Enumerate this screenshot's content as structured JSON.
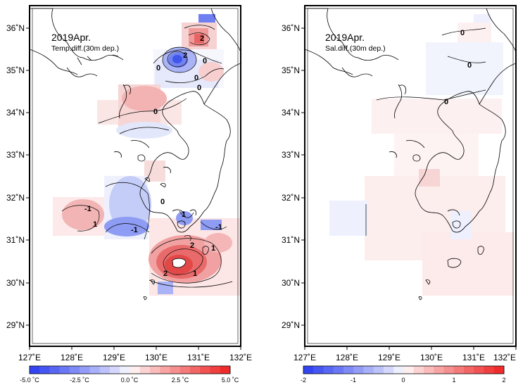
{
  "panels": [
    {
      "title": "2019Apr.",
      "subtitle": "Temp.diff.(30m dep.)",
      "x_ticks": [
        "127˚E",
        "128˚E",
        "129˚E",
        "130˚E",
        "131˚E",
        "132˚E"
      ],
      "y_ticks": [
        "36˚N",
        "35˚N",
        "34˚N",
        "33˚N",
        "32˚N",
        "31˚N",
        "30˚N",
        "29˚N"
      ],
      "colorbar": {
        "labels": [
          "-5.0 ˚C",
          "-2.5 ˚C",
          "0.0 ˚C",
          "2.5 ˚C",
          "5.0 ˚C"
        ],
        "range": [
          -5,
          5
        ]
      },
      "contour_labels": [
        "2",
        "2",
        "0",
        "0",
        "0",
        "0",
        "0",
        "0",
        "-1",
        "1",
        "1",
        "-1",
        "-1",
        "1",
        "2",
        "2",
        "1"
      ],
      "colors": {
        "negative": "#2a3df0",
        "positive": "#ee2222"
      }
    },
    {
      "title": "2019Apr.",
      "subtitle": "Sal.diff.(30m dep.)",
      "x_ticks": [
        "127˚E",
        "128˚E",
        "129˚E",
        "130˚E",
        "131˚E",
        "132˚E"
      ],
      "y_ticks": [
        "36˚N",
        "35˚N",
        "34˚N",
        "33˚N",
        "32˚N",
        "31˚N",
        "30˚N",
        "29˚N"
      ],
      "colorbar": {
        "labels": [
          "-2",
          "-1",
          "0",
          "1",
          "2"
        ],
        "range": [
          -2,
          2
        ]
      },
      "contour_labels": [
        "0",
        "0",
        "0"
      ],
      "colors": {
        "negative": "#2a3df0",
        "positive": "#ee2222"
      }
    }
  ]
}
